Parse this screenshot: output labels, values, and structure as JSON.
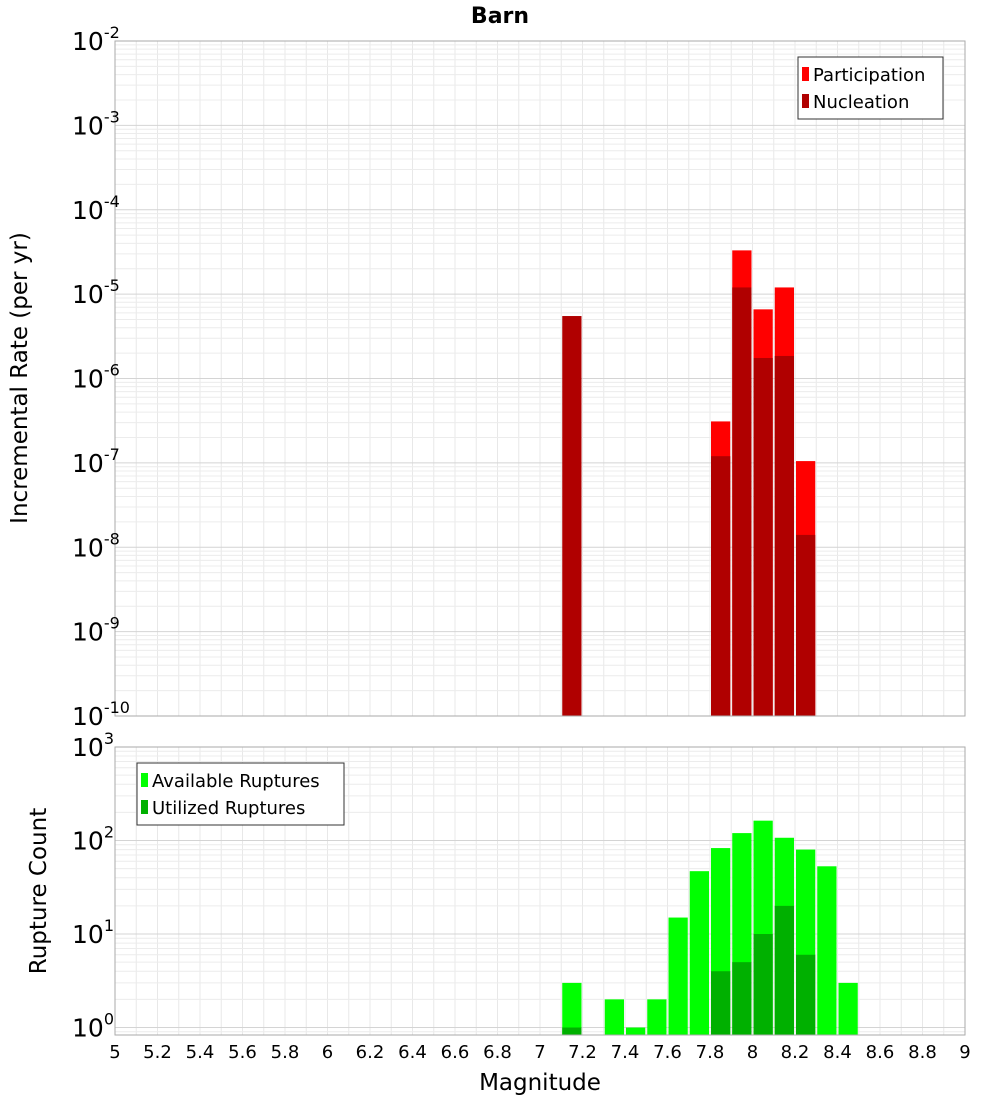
{
  "chart_data": {
    "title": "Barn",
    "xlabel": "Magnitude",
    "xlim": [
      5,
      9
    ],
    "x_ticks": [
      "5",
      "5.2",
      "5.4",
      "5.6",
      "5.8",
      "6",
      "6.2",
      "6.4",
      "6.6",
      "6.8",
      "7",
      "7.2",
      "7.4",
      "7.6",
      "7.8",
      "8",
      "8.2",
      "8.4",
      "8.6",
      "8.8",
      "9"
    ],
    "bin_width": 0.1,
    "panels": [
      {
        "type": "bar",
        "ylabel": "Incremental Rate (per yr)",
        "yscale": "log",
        "ylim_exp": [
          -10,
          -2
        ],
        "y_ticks": [
          {
            "base": "10",
            "exp": "-2"
          },
          {
            "base": "10",
            "exp": "-3"
          },
          {
            "base": "10",
            "exp": "-4"
          },
          {
            "base": "10",
            "exp": "-5"
          },
          {
            "base": "10",
            "exp": "-6"
          },
          {
            "base": "10",
            "exp": "-7"
          },
          {
            "base": "10",
            "exp": "-8"
          },
          {
            "base": "10",
            "exp": "-9"
          },
          {
            "base": "10",
            "exp": "-10"
          }
        ],
        "legend_position": "top-right",
        "series": [
          {
            "name": "Participation",
            "color": "#ff0000",
            "x": [
              7.85,
              7.95,
              8.05,
              8.15,
              8.25
            ],
            "values": [
              3.1e-07,
              3.3e-05,
              6.6e-06,
              1.2e-05,
              1.05e-07
            ]
          },
          {
            "name": "Nucleation",
            "color": "#b00000",
            "x": [
              7.15,
              7.85,
              7.95,
              8.05,
              8.15,
              8.25
            ],
            "values": [
              5.5e-06,
              1.2e-07,
              1.2e-05,
              1.75e-06,
              1.85e-06,
              1.4e-08
            ]
          }
        ]
      },
      {
        "type": "bar",
        "ylabel": "Rupture Count",
        "yscale": "log",
        "ylim_exp": [
          -0.08,
          3
        ],
        "y_ticks": [
          {
            "base": "10",
            "exp": "3"
          },
          {
            "base": "10",
            "exp": "2"
          },
          {
            "base": "10",
            "exp": "1"
          },
          {
            "base": "10",
            "exp": "0"
          }
        ],
        "legend_position": "top-left",
        "series": [
          {
            "name": "Available Ruptures",
            "color": "#00ff00",
            "x": [
              7.15,
              7.35,
              7.45,
              7.55,
              7.65,
              7.75,
              7.85,
              7.95,
              8.05,
              8.15,
              8.25,
              8.35,
              8.45
            ],
            "values": [
              3,
              2,
              1,
              2,
              15,
              47,
              83,
              120,
              163,
              107,
              80,
              53,
              3
            ]
          },
          {
            "name": "Utilized Ruptures",
            "color": "#00b000",
            "x": [
              7.15,
              7.85,
              7.95,
              8.05,
              8.15,
              8.25
            ],
            "values": [
              1,
              4,
              5,
              10,
              20,
              6
            ]
          }
        ]
      }
    ]
  }
}
